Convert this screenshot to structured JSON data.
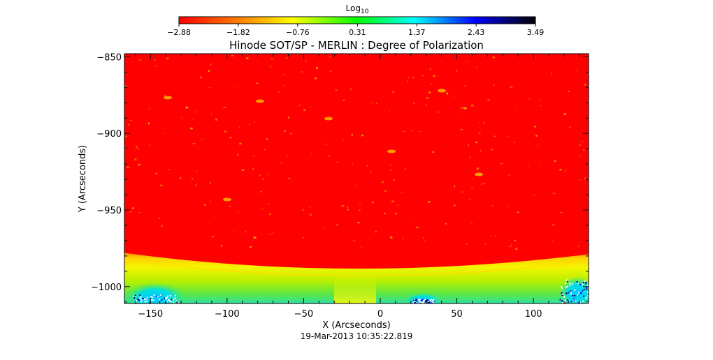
{
  "chart_data": {
    "type": "heatmap",
    "title": "Hinode SOT/SP - MERLIN : Degree of Polarization",
    "xlabel": "X (Arcseconds)",
    "ylabel": "Y (Arcseconds)",
    "timestamp": "19-Mar-2013 10:35:22.819",
    "xlim": [
      -167,
      136
    ],
    "ylim": [
      -1011,
      -848
    ],
    "x_ticks": [
      -150,
      -100,
      -50,
      0,
      50,
      100
    ],
    "x_tick_labels": [
      "−150",
      "−100",
      "−50",
      "0",
      "50",
      "100"
    ],
    "y_ticks": [
      -850,
      -900,
      -950,
      -1000
    ],
    "y_tick_labels": [
      "−850",
      "−900",
      "−950",
      "−1000"
    ],
    "colorbar": {
      "label_base": "Log",
      "label_sub": "10",
      "range": [
        -2.88,
        3.49
      ],
      "ticks": [
        -2.88,
        -1.82,
        -0.76,
        0.31,
        1.37,
        2.43,
        3.49
      ],
      "tick_labels": [
        "−2.88",
        "−1.82",
        "−0.76",
        "0.31",
        "1.37",
        "2.43",
        "3.49"
      ],
      "colormap": [
        "#ff0000",
        "#ff8000",
        "#ffff00",
        "#00ff00",
        "#00ffff",
        "#0000ff",
        "#000000"
      ]
    },
    "limb_y_center": -988,
    "limb_y_edges": -978,
    "map_background_color": "#ff0000"
  }
}
